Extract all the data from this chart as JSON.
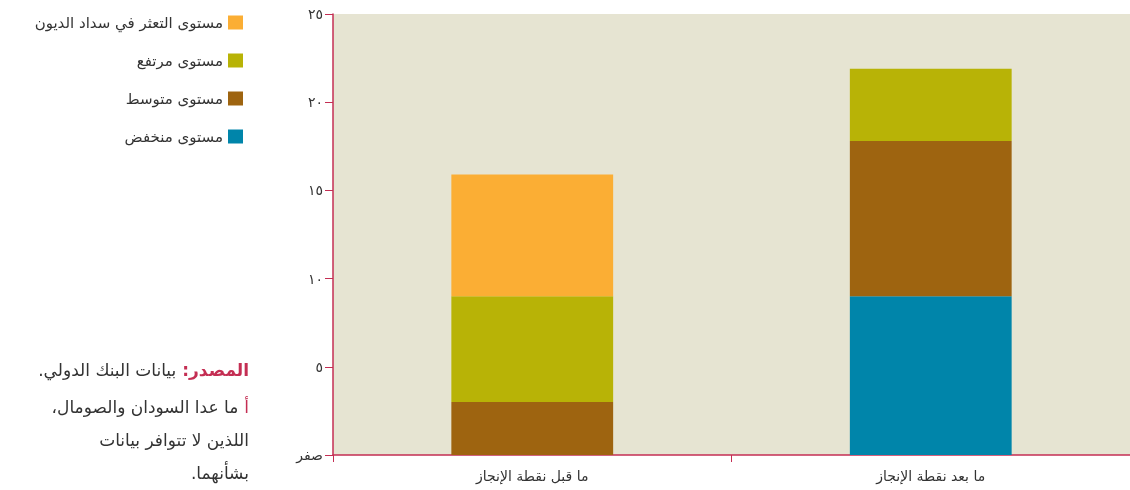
{
  "chart_data": {
    "type": "bar",
    "stacked": true,
    "categories": [
      "ما قبل نقطة الإنجاز",
      "ما بعد نقطة الإنجاز"
    ],
    "series": [
      {
        "name": "مستوى منخفض",
        "color": "#0085aa",
        "values": [
          null,
          9
        ]
      },
      {
        "name": "مستوى متوسط",
        "color": "#9e6410",
        "values": [
          3,
          8.8
        ]
      },
      {
        "name": "مستوى مرتفع",
        "color": "#b8b306",
        "values": [
          6,
          4.1
        ]
      },
      {
        "name": "مستوى التعثر في سداد الديون",
        "color": "#fbae34",
        "values": [
          6.9,
          null
        ]
      }
    ],
    "ylim": [
      0,
      25
    ],
    "yticks": [
      {
        "value": 0,
        "label": "صفر"
      },
      {
        "value": 5,
        "label": "٥"
      },
      {
        "value": 10,
        "label": "١٠"
      },
      {
        "value": 15,
        "label": "١٥"
      },
      {
        "value": 20,
        "label": "٢٠"
      },
      {
        "value": 25,
        "label": "٢٥"
      }
    ],
    "legend": "top left",
    "annotations": [
      "المصدر: بيانات البنك الدولي.",
      "أ ما عدا السودان والصومال، اللذين لا تتوافر بيانات بشأنهما."
    ]
  }
}
